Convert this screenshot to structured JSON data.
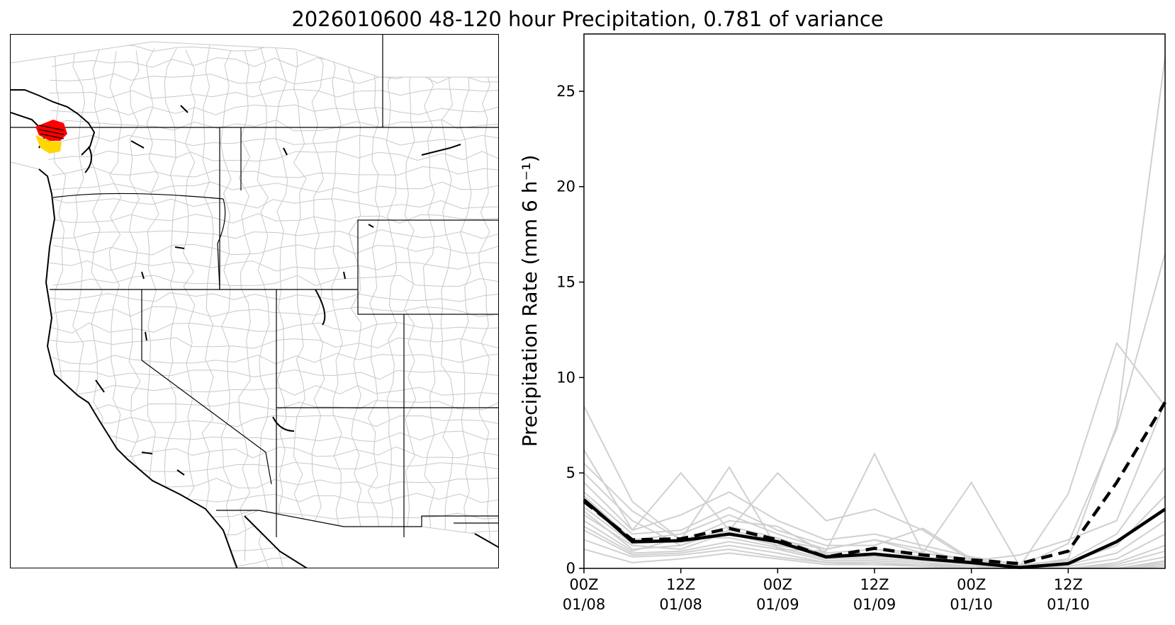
{
  "figure": {
    "title": "2026010600 48-120 hour Precipitation, 0.781 of variance"
  },
  "map": {
    "region": "Western United States",
    "highlight_colors": [
      "#ff0000",
      "#ffd700"
    ],
    "boundary_color": "#000000",
    "basin_color": "#c8c8c8"
  },
  "chart_data": {
    "type": "line",
    "title": "",
    "xlabel": "",
    "ylabel": "Precipitation Rate (mm 6 h⁻¹)",
    "ylim": [
      0,
      28
    ],
    "yticks": [
      0,
      5,
      10,
      15,
      20,
      25
    ],
    "xticks": [
      {
        "time": "00Z",
        "date": "01/08"
      },
      {
        "time": "12Z",
        "date": "01/08"
      },
      {
        "time": "00Z",
        "date": "01/09"
      },
      {
        "time": "12Z",
        "date": "01/09"
      },
      {
        "time": "00Z",
        "date": "01/10"
      },
      {
        "time": "12Z",
        "date": "01/10"
      }
    ],
    "x": [
      "00Z 01/08",
      "06Z 01/08",
      "12Z 01/08",
      "18Z 01/08",
      "00Z 01/09",
      "06Z 01/09",
      "12Z 01/09",
      "18Z 01/09",
      "00Z 01/10",
      "06Z 01/10",
      "12Z 01/10",
      "18Z 01/10",
      "00Z 01/11"
    ],
    "grid": false,
    "series": [
      {
        "style": "solid-black-thick",
        "values": [
          3.6,
          1.4,
          1.45,
          1.8,
          1.4,
          0.6,
          0.75,
          0.5,
          0.3,
          0.05,
          0.25,
          1.4,
          3.1
        ]
      },
      {
        "style": "dashed-black-thick",
        "values": [
          3.5,
          1.5,
          1.55,
          2.1,
          1.5,
          0.6,
          1.05,
          0.7,
          0.45,
          0.25,
          0.9,
          4.5,
          8.7
        ]
      },
      {
        "style": "member",
        "values": [
          8.5,
          3.5,
          1.5,
          1.8,
          1.2,
          0.8,
          1.0,
          0.6,
          0.3,
          0.1,
          0.5,
          7.5,
          26.8
        ]
      },
      {
        "style": "member",
        "values": [
          6.2,
          2.0,
          5.0,
          2.0,
          1.5,
          1.0,
          1.5,
          0.8,
          0.5,
          0.1,
          3.9,
          11.8,
          8.5
        ]
      },
      {
        "style": "member",
        "values": [
          5.5,
          3.0,
          1.5,
          5.3,
          1.0,
          0.9,
          6.0,
          0.8,
          4.5,
          0.1,
          1.3,
          7.3,
          16.5
        ]
      },
      {
        "style": "member",
        "values": [
          5.0,
          2.5,
          1.2,
          2.0,
          5.0,
          2.5,
          3.1,
          2.0,
          0.4,
          0.7,
          1.5,
          2.5,
          8.7
        ]
      },
      {
        "style": "member",
        "values": [
          4.5,
          2.0,
          2.8,
          4.0,
          2.5,
          1.5,
          1.8,
          1.2,
          0.6,
          0.2,
          0.4,
          1.8,
          5.3
        ]
      },
      {
        "style": "member",
        "values": [
          4.0,
          1.8,
          2.0,
          3.2,
          2.0,
          1.2,
          1.2,
          2.1,
          0.5,
          0.1,
          0.3,
          1.2,
          3.8
        ]
      },
      {
        "style": "member",
        "values": [
          3.8,
          1.5,
          1.8,
          2.8,
          1.8,
          1.0,
          1.5,
          1.0,
          0.3,
          0.0,
          0.2,
          0.8,
          2.5
        ]
      },
      {
        "style": "member",
        "values": [
          3.2,
          1.3,
          1.4,
          2.5,
          2.2,
          0.8,
          1.0,
          0.8,
          0.4,
          0.0,
          0.1,
          0.5,
          1.8
        ]
      },
      {
        "style": "member",
        "values": [
          3.0,
          1.0,
          1.2,
          2.2,
          1.6,
          0.7,
          0.8,
          0.6,
          0.3,
          0.0,
          0.0,
          0.3,
          1.2
        ]
      },
      {
        "style": "member",
        "values": [
          2.8,
          1.2,
          1.0,
          1.9,
          1.3,
          0.6,
          0.6,
          0.5,
          0.2,
          0.0,
          0.0,
          0.2,
          0.9
        ]
      },
      {
        "style": "member",
        "values": [
          2.5,
          0.9,
          1.6,
          1.6,
          1.1,
          0.5,
          0.5,
          0.4,
          0.2,
          0.0,
          0.0,
          0.1,
          0.6
        ]
      },
      {
        "style": "member",
        "values": [
          2.2,
          0.8,
          0.9,
          1.4,
          1.0,
          0.4,
          0.4,
          0.3,
          0.1,
          0.0,
          0.0,
          0.0,
          0.4
        ]
      },
      {
        "style": "member",
        "values": [
          2.0,
          0.7,
          0.8,
          1.2,
          0.8,
          0.3,
          0.3,
          0.2,
          0.1,
          0.0,
          0.0,
          0.0,
          0.3
        ]
      },
      {
        "style": "member",
        "values": [
          1.5,
          0.6,
          0.7,
          1.0,
          0.6,
          0.3,
          0.2,
          0.2,
          0.0,
          0.0,
          0.0,
          0.0,
          0.2
        ]
      },
      {
        "style": "member",
        "values": [
          1.0,
          0.3,
          0.5,
          0.8,
          0.5,
          0.2,
          0.2,
          0.1,
          0.0,
          0.0,
          0.0,
          0.0,
          0.1
        ]
      }
    ]
  }
}
